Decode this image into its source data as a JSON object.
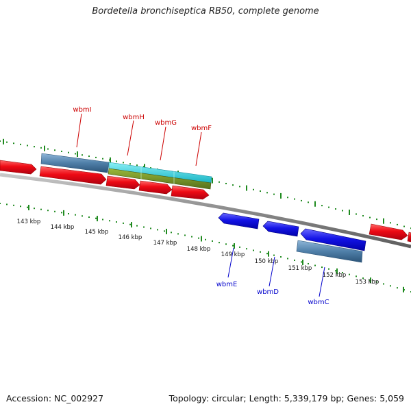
{
  "title": "Bordetella bronchiseptica RB50, complete genome",
  "footer": {
    "accession": "Accession: NC_002927",
    "topology": "Topology: circular; Length: 5,339,179 bp; Genes: 5,059"
  },
  "colors": {
    "forward_gene": "#e8001a",
    "reverse_gene": "#1010e0",
    "forward_label": "#cc0000",
    "reverse_label": "#0000cc",
    "steel_feature": "#4f7fa8",
    "cyan_feature": "#22c4d4",
    "olive_feature": "#6f8a1e",
    "tick": "#1f8a1f",
    "backbone": "#8a8a8a"
  },
  "ticks": [
    "143 kbp",
    "144 kbp",
    "145 kbp",
    "146 kbp",
    "147 kbp",
    "148 kbp",
    "149 kbp",
    "150 kbp",
    "151 kbp",
    "152 kbp",
    "153 kbp"
  ],
  "forward_labels": [
    "wbmI",
    "wbmH",
    "wbmG",
    "wbmF"
  ],
  "reverse_labels": [
    "wbmE",
    "wbmD",
    "wbmC"
  ]
}
